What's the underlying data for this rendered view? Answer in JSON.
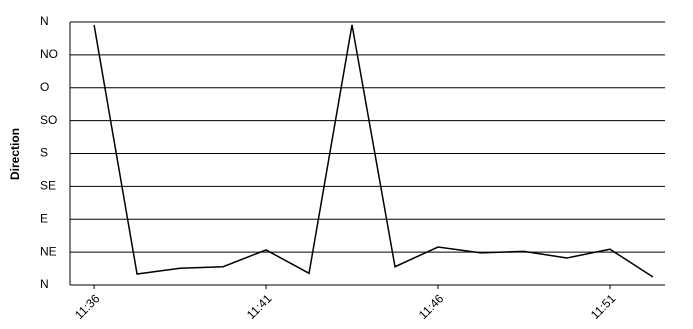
{
  "chart_data": {
    "type": "line",
    "ylabel": "Direction",
    "x": [
      696,
      697.25,
      698.5,
      699.75,
      701,
      702.25,
      703.5,
      704.75,
      706,
      707.25,
      708.5,
      709.75,
      711,
      712.25
    ],
    "series": [
      {
        "color": "#000000",
        "values": [
          356,
          15,
          23,
          25,
          48,
          16,
          356,
          25,
          52,
          44,
          46,
          37,
          49,
          11
        ]
      }
    ],
    "xlim": [
      695.3,
      712.6
    ],
    "xticks": [
      {
        "value": 696,
        "label": "11:36"
      },
      {
        "value": 701,
        "label": "11:41"
      },
      {
        "value": 706,
        "label": "11:46"
      },
      {
        "value": 711,
        "label": "11:51"
      }
    ],
    "ylim": [
      0,
      360
    ],
    "yticks": [
      {
        "value": 0,
        "label": "N"
      },
      {
        "value": 45,
        "label": "NE"
      },
      {
        "value": 90,
        "label": "E"
      },
      {
        "value": 135,
        "label": "SE"
      },
      {
        "value": 180,
        "label": "S"
      },
      {
        "value": 225,
        "label": "SO"
      },
      {
        "value": 270,
        "label": "O"
      },
      {
        "value": 315,
        "label": "NO"
      },
      {
        "value": 360,
        "label": "N"
      }
    ],
    "grid": true
  }
}
